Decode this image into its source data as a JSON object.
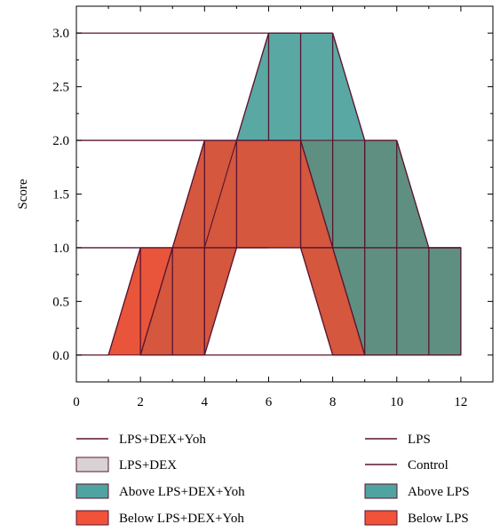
{
  "chart_data": {
    "type": "area",
    "title": "",
    "xlabel": "",
    "ylabel": "Score",
    "xlim": [
      0,
      13
    ],
    "ylim": [
      -0.25,
      3.25
    ],
    "x_ticks": [
      0,
      2,
      4,
      6,
      8,
      10,
      12
    ],
    "x_tick_labels": [
      "0",
      "2",
      "4",
      "6",
      "8",
      "10",
      "12"
    ],
    "y_ticks": [
      0.0,
      0.5,
      1.0,
      1.5,
      2.0,
      2.5,
      3.0
    ],
    "y_tick_labels": [
      "0.0",
      "0.5",
      "1.0",
      "1.5",
      "2.0",
      "2.5",
      "3.0"
    ],
    "grid": false,
    "legend_position": "bottom",
    "series": [
      {
        "name": "LPS+DEX+Yoh",
        "kind": "line",
        "x": [
          0,
          1,
          2,
          3,
          4,
          5,
          6,
          7,
          8,
          9,
          10,
          11,
          12
        ],
        "y": [
          0,
          0,
          1,
          1,
          2,
          2,
          3,
          3,
          3,
          2,
          2,
          1,
          1
        ],
        "color": "#5a1430"
      },
      {
        "name": "LPS+DEX",
        "kind": "line",
        "x": [
          0,
          1,
          2,
          3,
          4,
          5,
          6,
          7,
          8,
          9,
          10,
          11,
          12
        ],
        "y": [
          0,
          0,
          0,
          1,
          0,
          2,
          2,
          2,
          0,
          0,
          0,
          0,
          0
        ],
        "color": "#9a8890"
      },
      {
        "name": "LPS",
        "kind": "line",
        "x": [
          0,
          1,
          2,
          3,
          4,
          5,
          6,
          7,
          8,
          9,
          10,
          11,
          12
        ],
        "y": [
          0,
          0,
          0,
          0,
          1,
          2,
          2,
          2,
          2,
          2,
          2,
          1,
          1
        ],
        "color": "#5a1430"
      },
      {
        "name": "Control",
        "kind": "line",
        "x": [
          0,
          1,
          2,
          3,
          4,
          5,
          6,
          7,
          8,
          9,
          10,
          11,
          12
        ],
        "y": [
          0,
          0,
          0,
          0,
          0,
          0,
          0,
          1,
          0,
          0,
          0,
          0,
          0
        ],
        "color": "#5a1430"
      }
    ],
    "legend": [
      {
        "label": "LPS+DEX+Yoh",
        "kind": "line",
        "color": "#5a1430"
      },
      {
        "label": "LPS",
        "kind": "line",
        "color": "#5a1430"
      },
      {
        "label": "LPS+DEX",
        "kind": "box",
        "color": "#d9d2d4"
      },
      {
        "label": "Control",
        "kind": "line",
        "color": "#5a1430"
      },
      {
        "label": "Above LPS+DEX+Yoh",
        "kind": "box",
        "color": "#4fa3a0"
      },
      {
        "label": "Above LPS",
        "kind": "box",
        "color": "#4fa3a0"
      },
      {
        "label": "Below LPS+DEX+Yoh",
        "kind": "box",
        "color": "#f0523a"
      },
      {
        "label": "Below LPS",
        "kind": "box",
        "color": "#f0523a"
      }
    ],
    "fills": {
      "orange": "#e8553a",
      "red": "#d4573e",
      "teal": "#5aa8a3",
      "dark_teal": "#5f8f80",
      "stroke": "#5a1430"
    }
  }
}
